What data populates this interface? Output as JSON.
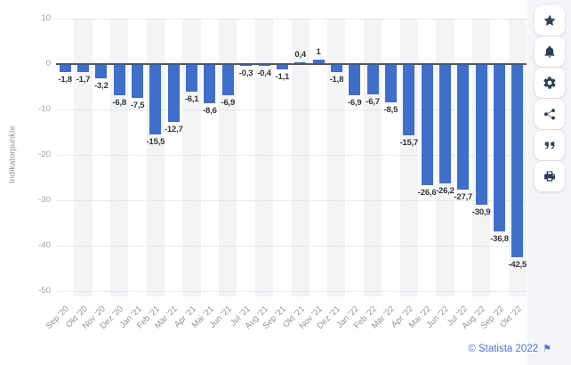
{
  "chart_data": {
    "type": "bar",
    "title": "",
    "xlabel": "",
    "ylabel": "Indikatorpunkte",
    "ylim": [
      -50,
      10
    ],
    "grid": "horizontal-dotted",
    "legend": "none",
    "bar_color": "#3f6fca",
    "band_color": "#f3f4f6",
    "categories": [
      "Sep '20",
      "Okt '20",
      "Nov '20",
      "Dez '20",
      "Jan '21",
      "Feb '21",
      "Mär '21",
      "Apr '21",
      "Mai '21",
      "Jun '21",
      "Jul '21",
      "Aug '21",
      "Sep '21",
      "Okt '21",
      "Nov '21",
      "Dez '21",
      "Jan '22",
      "Feb '22",
      "Mär '22",
      "Apr '22",
      "Mai '22",
      "Jun '22",
      "Jul '22",
      "Aug '22",
      "Sep '22",
      "Okt '22"
    ],
    "values": [
      -1.8,
      -1.7,
      -3.2,
      -6.8,
      -7.5,
      -15.5,
      -12.7,
      -6.1,
      -8.6,
      -6.9,
      -0.3,
      -0.4,
      -1.1,
      0.4,
      1,
      -1.8,
      -6.9,
      -6.7,
      -8.5,
      -15.7,
      -26.6,
      -26.2,
      -27.7,
      -30.9,
      -36.8,
      -42.5
    ],
    "value_labels": [
      "-1,8",
      "-1,7",
      "-3,2",
      "-6,8",
      "-7,5",
      "-15,5",
      "-12,7",
      "-6,1",
      "-8,6",
      "-6,9",
      "-0,3",
      "-0,4",
      "-1,1",
      "0,4",
      "1",
      "-1,8",
      "-6,9",
      "-6,7",
      "-8,5",
      "-15,7",
      "-26,6",
      "-26,2",
      "-27,7",
      "-30,9",
      "-36,8",
      "-42,5"
    ],
    "y_ticks": [
      10,
      0,
      -10,
      -20,
      -30,
      -40,
      -50
    ],
    "y_tick_labels": [
      "10",
      "0",
      "-10",
      "-20",
      "-30",
      "-40",
      "-50"
    ]
  },
  "toolbar": {
    "buttons": [
      {
        "name": "favorite-button",
        "icon": "star-icon"
      },
      {
        "name": "notification-button",
        "icon": "bell-icon"
      },
      {
        "name": "settings-button",
        "icon": "gear-icon"
      },
      {
        "name": "share-button",
        "icon": "share-icon"
      },
      {
        "name": "citation-button",
        "icon": "quote-icon"
      },
      {
        "name": "print-button",
        "icon": "printer-icon"
      }
    ]
  },
  "footer": {
    "attribution": "© Statista 2022",
    "flag_icon": "⚑"
  }
}
